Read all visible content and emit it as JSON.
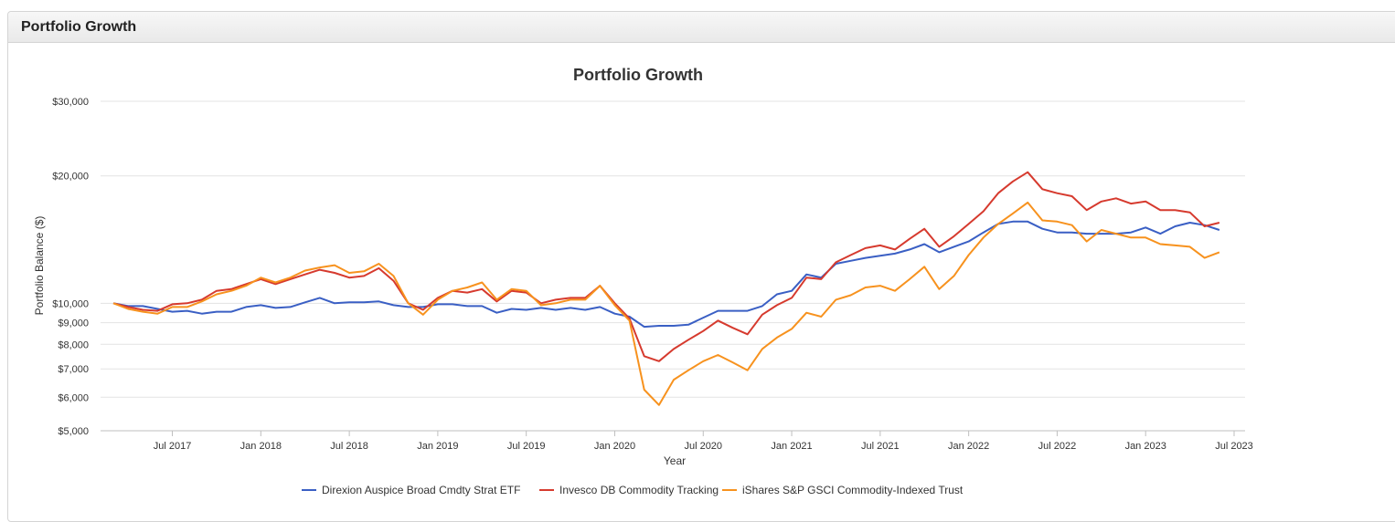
{
  "panel": {
    "title": "Portfolio Growth"
  },
  "chart_data": {
    "type": "line",
    "title": "Portfolio Growth",
    "xlabel": "Year",
    "ylabel": "Portfolio Balance ($)",
    "y_scale": "log",
    "ylim": [
      5000,
      30000
    ],
    "y_ticks": [
      5000,
      6000,
      7000,
      8000,
      9000,
      10000,
      20000,
      30000
    ],
    "y_tick_labels": [
      "$5,000",
      "$6,000",
      "$7,000",
      "$8,000",
      "$9,000",
      "$10,000",
      "$20,000",
      "$30,000"
    ],
    "x_range": [
      "2017-03",
      "2023-07"
    ],
    "x_ticks": [
      "2017-07",
      "2018-01",
      "2018-07",
      "2019-01",
      "2019-07",
      "2020-01",
      "2020-07",
      "2021-01",
      "2021-07",
      "2022-01",
      "2022-07",
      "2023-01",
      "2023-07"
    ],
    "x_tick_labels": [
      "Jul 2017",
      "Jan 2018",
      "Jul 2018",
      "Jan 2019",
      "Jul 2019",
      "Jan 2020",
      "Jul 2020",
      "Jan 2021",
      "Jul 2021",
      "Jan 2022",
      "Jul 2022",
      "Jan 2023",
      "Jul 2023"
    ],
    "grid": true,
    "legend": "bottom",
    "x": [
      "2017-03",
      "2017-04",
      "2017-05",
      "2017-06",
      "2017-07",
      "2017-08",
      "2017-09",
      "2017-10",
      "2017-11",
      "2017-12",
      "2018-01",
      "2018-02",
      "2018-03",
      "2018-04",
      "2018-05",
      "2018-06",
      "2018-07",
      "2018-08",
      "2018-09",
      "2018-10",
      "2018-11",
      "2018-12",
      "2019-01",
      "2019-02",
      "2019-03",
      "2019-04",
      "2019-05",
      "2019-06",
      "2019-07",
      "2019-08",
      "2019-09",
      "2019-10",
      "2019-11",
      "2019-12",
      "2020-01",
      "2020-02",
      "2020-03",
      "2020-04",
      "2020-05",
      "2020-06",
      "2020-07",
      "2020-08",
      "2020-09",
      "2020-10",
      "2020-11",
      "2020-12",
      "2021-01",
      "2021-02",
      "2021-03",
      "2021-04",
      "2021-05",
      "2021-06",
      "2021-07",
      "2021-08",
      "2021-09",
      "2021-10",
      "2021-11",
      "2021-12",
      "2022-01",
      "2022-02",
      "2022-03",
      "2022-04",
      "2022-05",
      "2022-06",
      "2022-07",
      "2022-08",
      "2022-09",
      "2022-10",
      "2022-11",
      "2022-12",
      "2023-01",
      "2023-02",
      "2023-03",
      "2023-04",
      "2023-05",
      "2023-06",
      "2023-07"
    ],
    "series": [
      {
        "name": "Direxion Auspice Broad Cmdty Strat ETF",
        "color": "#3a5fc4",
        "values": [
          10000,
          9850,
          9850,
          9700,
          9550,
          9600,
          9450,
          9550,
          9550,
          9800,
          9900,
          9750,
          9800,
          10050,
          10300,
          10000,
          10050,
          10050,
          10100,
          9900,
          9800,
          9800,
          9950,
          9950,
          9850,
          9850,
          9500,
          9700,
          9650,
          9750,
          9650,
          9750,
          9650,
          9800,
          9450,
          9300,
          8800,
          8850,
          8850,
          8900,
          9250,
          9600,
          9600,
          9600,
          9850,
          10500,
          10700,
          11700,
          11500,
          12400,
          12600,
          12800,
          12950,
          13100,
          13400,
          13800,
          13200,
          13600,
          14000,
          14700,
          15400,
          15600,
          15600,
          15000,
          14700,
          14700,
          14600,
          14600,
          14600,
          14700,
          15100,
          14600,
          15200,
          15500,
          15300,
          14900,
          null
        ]
      },
      {
        "name": "Invesco DB Commodity Tracking",
        "color": "#d63a2e",
        "values": [
          10000,
          9800,
          9650,
          9600,
          9950,
          10000,
          10200,
          10700,
          10800,
          11100,
          11400,
          11100,
          11400,
          11700,
          12000,
          11800,
          11500,
          11600,
          12100,
          11300,
          10000,
          9650,
          10300,
          10700,
          10600,
          10800,
          10100,
          10700,
          10600,
          10000,
          10200,
          10300,
          10300,
          11000,
          10000,
          9200,
          7500,
          7300,
          7800,
          8200,
          8600,
          9100,
          8750,
          8450,
          9400,
          9900,
          10300,
          11500,
          11400,
          12500,
          13000,
          13500,
          13700,
          13400,
          14200,
          15000,
          13600,
          14400,
          15400,
          16500,
          18200,
          19400,
          20400,
          18600,
          18200,
          17900,
          16600,
          17400,
          17700,
          17200,
          17400,
          16600,
          16600,
          16400,
          15200,
          15500,
          null
        ]
      },
      {
        "name": "iShares S&P GSCI Commodity-Indexed Trust",
        "color": "#f7921e",
        "values": [
          10000,
          9700,
          9550,
          9450,
          9800,
          9800,
          10100,
          10500,
          10700,
          11000,
          11500,
          11200,
          11500,
          11950,
          12150,
          12300,
          11800,
          11900,
          12400,
          11600,
          10000,
          9400,
          10200,
          10700,
          10900,
          11200,
          10200,
          10800,
          10700,
          9900,
          10000,
          10200,
          10200,
          11000,
          9900,
          9100,
          6250,
          5750,
          6600,
          6950,
          7300,
          7550,
          7250,
          6950,
          7800,
          8300,
          8700,
          9500,
          9300,
          10200,
          10450,
          10900,
          11000,
          10700,
          11400,
          12200,
          10800,
          11600,
          13000,
          14300,
          15400,
          16300,
          17300,
          15700,
          15600,
          15300,
          14000,
          14900,
          14600,
          14300,
          14300,
          13800,
          13700,
          13600,
          12800,
          13200,
          null
        ]
      }
    ]
  }
}
